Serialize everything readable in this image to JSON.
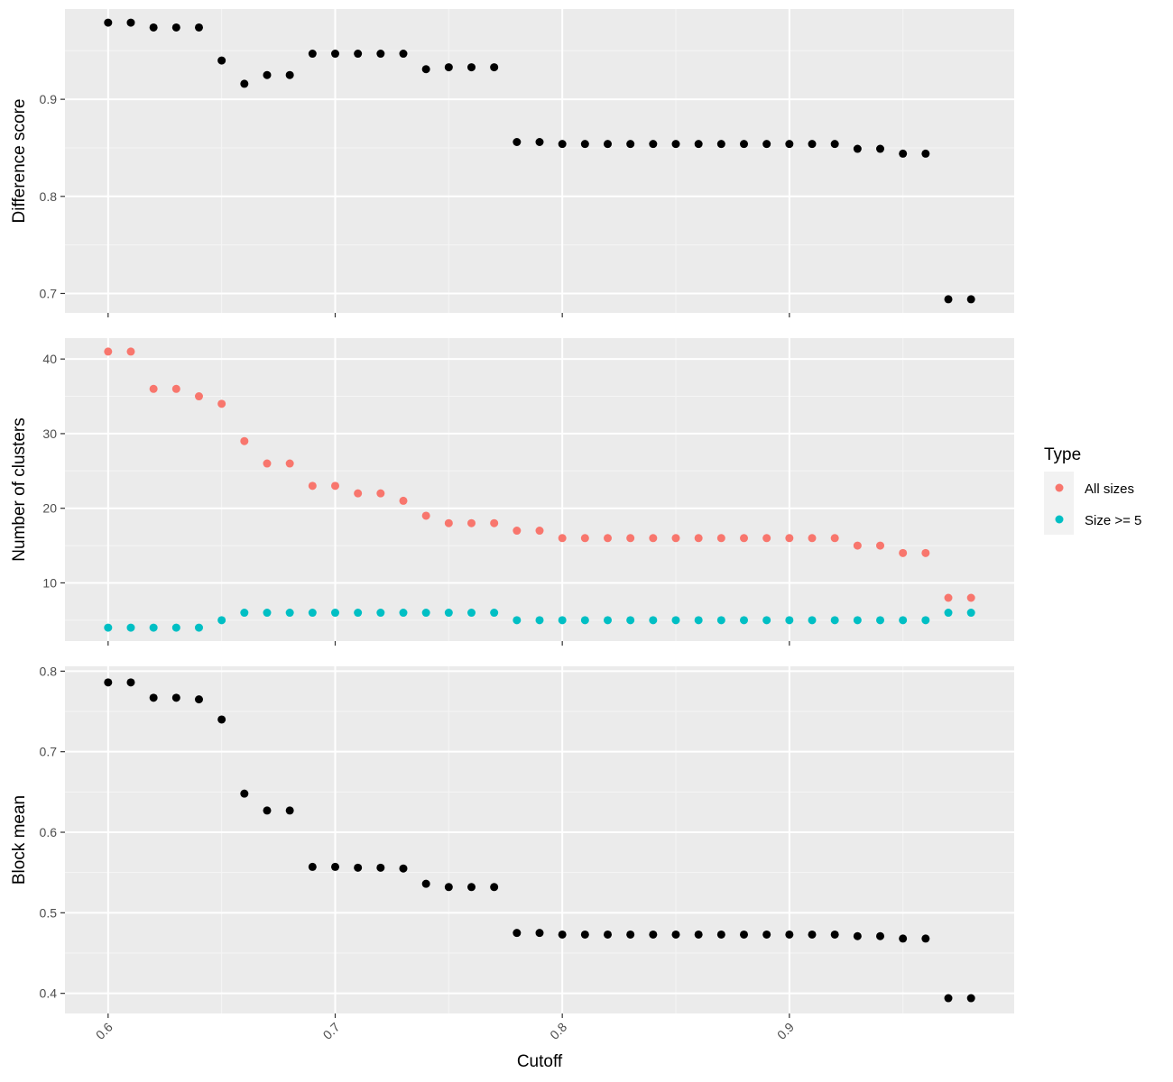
{
  "colors": {
    "panel_bg": "#EBEBEB",
    "grid_major": "#FFFFFF",
    "grid_minor": "#F5F5F5",
    "tick": "#333333",
    "tick_text": "#4D4D4D",
    "all_sizes": "#F8766D",
    "size_ge_5": "#00BFC4",
    "single": "#000000"
  },
  "chart_data": {
    "type": "scatter",
    "xlabel": "Cutoff",
    "x_ticks": [
      0.6,
      0.7,
      0.8,
      0.9
    ],
    "x_tick_labels": [
      "0.6",
      "0.7",
      "0.8",
      "0.9"
    ],
    "xlim": [
      0.581,
      0.999
    ],
    "x": [
      0.6,
      0.61,
      0.62,
      0.63,
      0.64,
      0.65,
      0.66,
      0.67,
      0.68,
      0.69,
      0.7,
      0.71,
      0.72,
      0.73,
      0.74,
      0.75,
      0.76,
      0.77,
      0.78,
      0.79,
      0.8,
      0.81,
      0.82,
      0.83,
      0.84,
      0.85,
      0.86,
      0.87,
      0.88,
      0.89,
      0.9,
      0.91,
      0.92,
      0.93,
      0.94,
      0.95,
      0.96,
      0.97,
      0.98
    ],
    "panels": [
      {
        "id": "difference",
        "ylabel": "Difference score",
        "ylim": [
          0.68,
          0.993
        ],
        "y_ticks": [
          0.7,
          0.8,
          0.9
        ],
        "y_tick_labels": [
          "0.7",
          "0.8",
          "0.9"
        ],
        "series": [
          {
            "color_key": "single",
            "values": [
              0.979,
              0.979,
              0.974,
              0.974,
              0.974,
              0.94,
              0.916,
              0.925,
              0.925,
              0.947,
              0.947,
              0.947,
              0.947,
              0.947,
              0.931,
              0.933,
              0.933,
              0.933,
              0.856,
              0.856,
              0.854,
              0.854,
              0.854,
              0.854,
              0.854,
              0.854,
              0.854,
              0.854,
              0.854,
              0.854,
              0.854,
              0.854,
              0.854,
              0.849,
              0.849,
              0.844,
              0.844,
              0.694,
              0.694
            ]
          }
        ]
      },
      {
        "id": "clusters",
        "ylabel": "Number of clusters",
        "ylim": [
          2.2,
          42.8
        ],
        "y_ticks": [
          10,
          20,
          30,
          40
        ],
        "y_tick_labels": [
          "10",
          "20",
          "30",
          "40"
        ],
        "series": [
          {
            "name": "All sizes",
            "color_key": "all_sizes",
            "values": [
              41,
              41,
              36,
              36,
              35,
              34,
              29,
              26,
              26,
              23,
              23,
              22,
              22,
              21,
              19,
              18,
              18,
              18,
              17,
              17,
              16,
              16,
              16,
              16,
              16,
              16,
              16,
              16,
              16,
              16,
              16,
              16,
              16,
              15,
              15,
              14,
              14,
              8,
              8
            ]
          },
          {
            "name": "Size >= 5",
            "color_key": "size_ge_5",
            "values": [
              4,
              4,
              4,
              4,
              4,
              5,
              6,
              6,
              6,
              6,
              6,
              6,
              6,
              6,
              6,
              6,
              6,
              6,
              5,
              5,
              5,
              5,
              5,
              5,
              5,
              5,
              5,
              5,
              5,
              5,
              5,
              5,
              5,
              5,
              5,
              5,
              5,
              6,
              6
            ]
          }
        ]
      },
      {
        "id": "blockmean",
        "ylabel": "Block mean",
        "ylim": [
          0.375,
          0.806
        ],
        "y_ticks": [
          0.4,
          0.5,
          0.6,
          0.7,
          0.8
        ],
        "y_tick_labels": [
          "0.4",
          "0.5",
          "0.6",
          "0.7",
          "0.8"
        ],
        "series": [
          {
            "color_key": "single",
            "values": [
              0.786,
              0.786,
              0.767,
              0.767,
              0.765,
              0.74,
              0.648,
              0.627,
              0.627,
              0.557,
              0.557,
              0.556,
              0.556,
              0.555,
              0.536,
              0.532,
              0.532,
              0.532,
              0.475,
              0.475,
              0.473,
              0.473,
              0.473,
              0.473,
              0.473,
              0.473,
              0.473,
              0.473,
              0.473,
              0.473,
              0.473,
              0.473,
              0.473,
              0.471,
              0.471,
              0.468,
              0.468,
              0.394,
              0.394
            ]
          }
        ]
      }
    ],
    "legend": {
      "title": "Type",
      "placement": "right",
      "entries": [
        {
          "label": "All sizes",
          "color_key": "all_sizes"
        },
        {
          "label": "Size >= 5",
          "color_key": "size_ge_5"
        }
      ]
    },
    "grid": true
  }
}
